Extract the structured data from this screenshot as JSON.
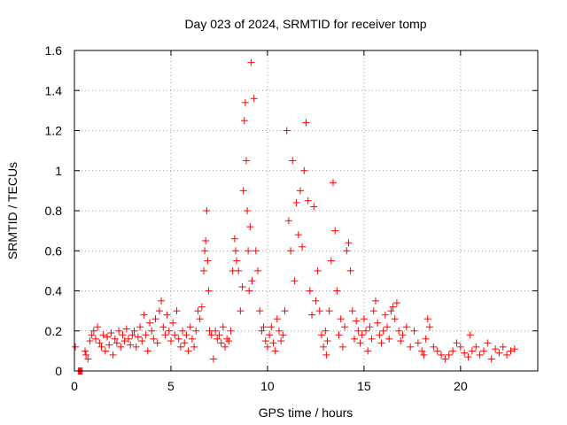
{
  "chart_data": {
    "type": "scatter",
    "title": "Day 023 of 2024, SRMTID for receiver tomp",
    "xlabel": "GPS time / hours",
    "ylabel": "SRMTID / TECUs",
    "xlim": [
      0,
      24
    ],
    "ylim": [
      0,
      1.6
    ],
    "xticks": [
      0,
      5,
      10,
      15,
      20
    ],
    "xtick_labels": [
      "0",
      "5",
      "10",
      "15",
      "20"
    ],
    "yticks": [
      0,
      0.2,
      0.4,
      0.6,
      0.8,
      1.0,
      1.2,
      1.4,
      1.6
    ],
    "ytick_labels": [
      "0",
      "0.2",
      "0.4",
      "0.6",
      "0.8",
      "1",
      "1.2",
      "1.4",
      "1.6"
    ],
    "grid": true,
    "marker": "+",
    "series": [
      {
        "name": "SRMTID",
        "color": "#ff0000",
        "x": [
          0.05,
          0.2,
          0.25,
          0.3,
          0.35,
          0.4,
          0.55,
          0.6,
          0.7,
          0.8,
          0.9,
          1.0,
          1.1,
          1.2,
          1.3,
          1.4,
          1.5,
          1.6,
          1.7,
          1.8,
          1.9,
          2.0,
          2.1,
          2.2,
          2.3,
          2.4,
          2.5,
          2.6,
          2.7,
          2.8,
          2.9,
          3.0,
          3.1,
          3.2,
          3.3,
          3.4,
          3.5,
          3.6,
          3.7,
          3.8,
          3.9,
          4.0,
          4.1,
          4.2,
          4.3,
          4.4,
          4.5,
          4.6,
          4.7,
          4.8,
          4.9,
          5.0,
          5.1,
          5.2,
          5.3,
          5.4,
          5.5,
          5.6,
          5.7,
          5.8,
          5.9,
          6.0,
          6.1,
          6.2,
          6.3,
          6.4,
          6.5,
          6.6,
          6.7,
          6.75,
          6.8,
          6.85,
          6.9,
          6.95,
          7.0,
          7.1,
          7.2,
          7.3,
          7.4,
          7.5,
          7.6,
          7.7,
          7.8,
          7.9,
          8.0,
          8.1,
          8.2,
          8.3,
          8.35,
          8.4,
          8.5,
          8.6,
          8.7,
          8.75,
          8.8,
          8.85,
          8.9,
          8.95,
          9.0,
          9.05,
          9.1,
          9.15,
          9.2,
          9.3,
          9.4,
          9.5,
          9.6,
          9.7,
          9.8,
          9.9,
          10.0,
          10.1,
          10.2,
          10.3,
          10.4,
          10.5,
          10.6,
          10.7,
          10.8,
          10.9,
          11.0,
          11.1,
          11.2,
          11.3,
          11.4,
          11.5,
          11.6,
          11.7,
          11.8,
          11.9,
          12.0,
          12.1,
          12.2,
          12.3,
          12.4,
          12.5,
          12.6,
          12.7,
          12.8,
          12.9,
          13.0,
          13.05,
          13.1,
          13.2,
          13.3,
          13.4,
          13.5,
          13.6,
          13.7,
          13.8,
          13.9,
          14.0,
          14.1,
          14.2,
          14.3,
          14.4,
          14.5,
          14.6,
          14.7,
          14.8,
          14.9,
          15.0,
          15.1,
          15.2,
          15.3,
          15.4,
          15.5,
          15.6,
          15.7,
          15.8,
          15.9,
          16.0,
          16.1,
          16.2,
          16.3,
          16.4,
          16.5,
          16.6,
          16.7,
          16.8,
          16.9,
          17.0,
          17.2,
          17.4,
          17.6,
          17.8,
          18.0,
          18.1,
          18.2,
          18.3,
          18.4,
          18.6,
          18.8,
          19.0,
          19.2,
          19.4,
          19.6,
          19.8,
          20.0,
          20.2,
          20.4,
          20.5,
          20.6,
          20.8,
          21.0,
          21.2,
          21.4,
          21.6,
          21.8,
          22.0,
          22.2,
          22.4,
          22.6,
          22.8
        ],
        "y": [
          0.12,
          0.0,
          0.0,
          0.0,
          0.0,
          0.0,
          0.1,
          0.08,
          0.06,
          0.15,
          0.18,
          0.2,
          0.16,
          0.22,
          0.14,
          0.12,
          0.18,
          0.1,
          0.17,
          0.13,
          0.19,
          0.08,
          0.16,
          0.14,
          0.2,
          0.12,
          0.18,
          0.15,
          0.21,
          0.16,
          0.13,
          0.18,
          0.2,
          0.12,
          0.17,
          0.22,
          0.15,
          0.28,
          0.18,
          0.1,
          0.24,
          0.2,
          0.16,
          0.26,
          0.14,
          0.3,
          0.35,
          0.22,
          0.18,
          0.28,
          0.2,
          0.15,
          0.24,
          0.18,
          0.3,
          0.16,
          0.12,
          0.2,
          0.14,
          0.18,
          0.1,
          0.22,
          0.16,
          0.12,
          0.2,
          0.3,
          0.26,
          0.32,
          0.5,
          0.6,
          0.65,
          0.8,
          0.55,
          0.4,
          0.2,
          0.18,
          0.06,
          0.2,
          0.16,
          0.18,
          0.14,
          0.22,
          0.12,
          0.16,
          0.15,
          0.2,
          0.5,
          0.66,
          0.6,
          0.55,
          0.5,
          0.3,
          0.42,
          0.9,
          1.25,
          1.34,
          1.05,
          0.8,
          0.6,
          0.4,
          0.72,
          1.54,
          0.45,
          1.36,
          0.6,
          0.5,
          0.3,
          0.2,
          0.22,
          0.15,
          0.12,
          0.18,
          0.22,
          0.14,
          0.1,
          0.26,
          0.2,
          0.15,
          0.18,
          0.3,
          1.2,
          0.75,
          0.6,
          1.05,
          0.45,
          0.84,
          0.68,
          0.9,
          0.62,
          1.0,
          1.24,
          0.85,
          0.4,
          0.28,
          0.82,
          0.35,
          0.5,
          0.3,
          0.18,
          0.12,
          0.2,
          0.08,
          0.15,
          0.3,
          0.55,
          0.94,
          0.7,
          0.4,
          0.18,
          0.26,
          0.12,
          0.22,
          0.6,
          0.64,
          0.5,
          0.3,
          0.16,
          0.25,
          0.2,
          0.14,
          0.18,
          0.26,
          0.2,
          0.1,
          0.22,
          0.16,
          0.3,
          0.35,
          0.24,
          0.18,
          0.14,
          0.2,
          0.28,
          0.22,
          0.16,
          0.3,
          0.32,
          0.26,
          0.34,
          0.2,
          0.15,
          0.18,
          0.22,
          0.12,
          0.2,
          0.14,
          0.1,
          0.08,
          0.16,
          0.26,
          0.22,
          0.12,
          0.1,
          0.08,
          0.06,
          0.08,
          0.1,
          0.14,
          0.12,
          0.09,
          0.07,
          0.18,
          0.1,
          0.12,
          0.08,
          0.1,
          0.14,
          0.06,
          0.11,
          0.09,
          0.12,
          0.08,
          0.1,
          0.11
        ]
      }
    ]
  }
}
